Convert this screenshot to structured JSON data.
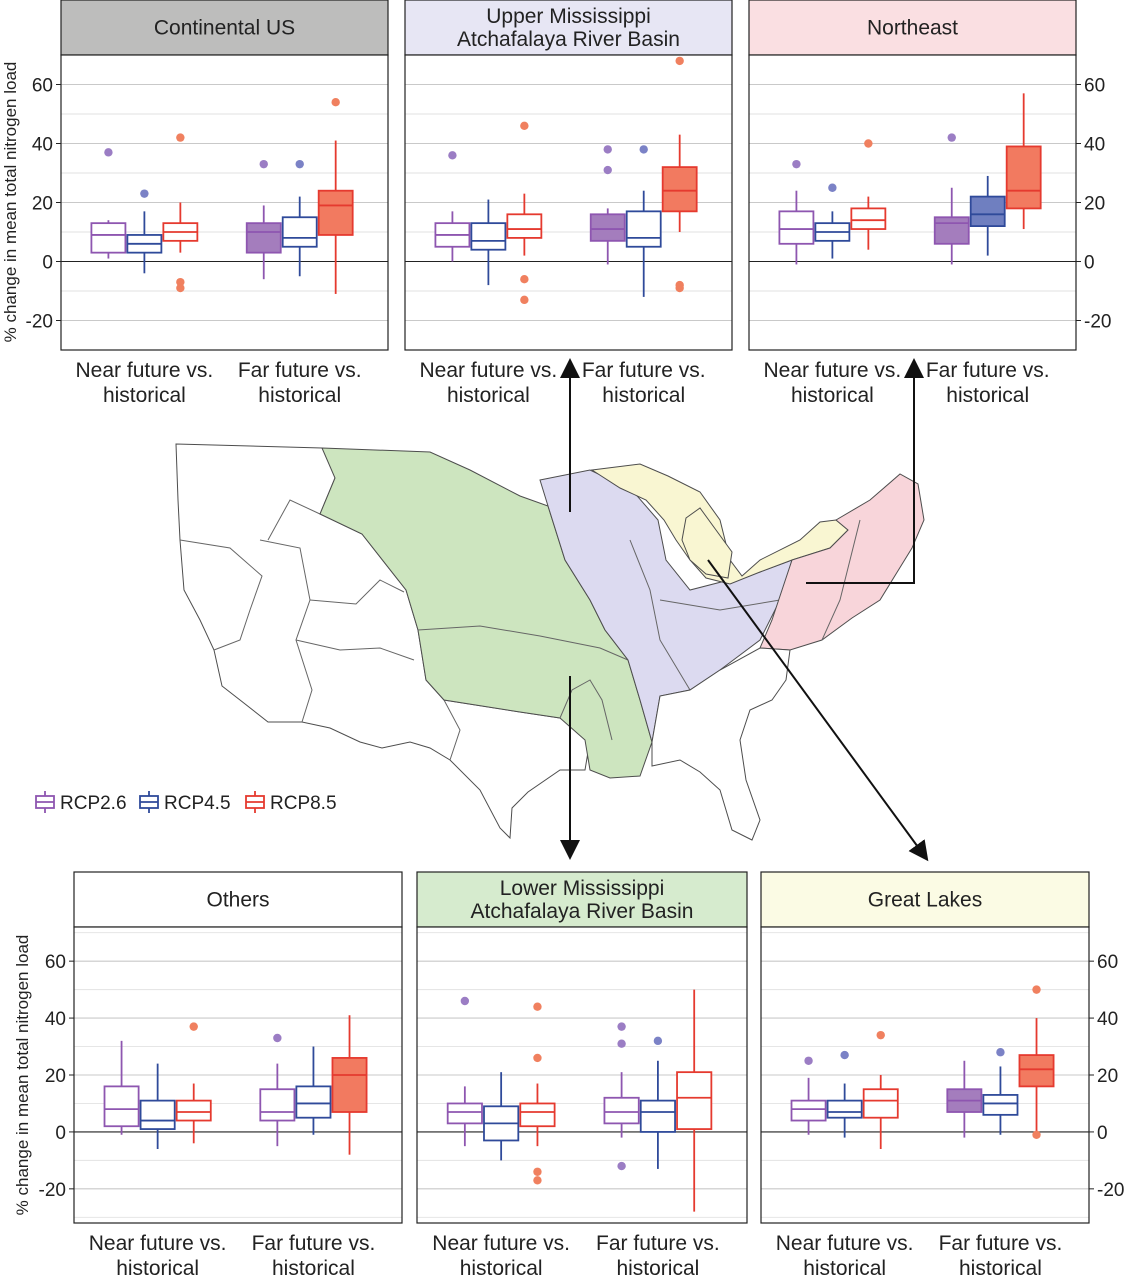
{
  "y_axis_label": "% change in mean total nitrogen load",
  "legend": [
    {
      "label": "RCP2.6",
      "color": "#8e56b0"
    },
    {
      "label": "RCP4.5",
      "color": "#2f4a9a"
    },
    {
      "label": "RCP8.5",
      "color": "#e53a2f"
    }
  ],
  "colors": {
    "strip_continental": "#bdbdbc",
    "strip_upper": "#e7e6f4",
    "strip_northeast": "#fadfe2",
    "strip_others": "#ffffff",
    "strip_lower": "#d6ebce",
    "strip_greatlakes": "#fbfbe4",
    "map_green": "#cde5bf",
    "map_lavender": "#dcdaf0",
    "map_yellow": "#f9f6d2",
    "map_pink": "#f8d5da"
  },
  "chart_data": [
    {
      "type": "boxplot",
      "title": "Continental US",
      "categories": [
        "Near future vs.\nhistorical",
        "Far future vs.\nhistorical"
      ],
      "ylim": [
        -30,
        70
      ],
      "yticks": [
        60,
        40,
        20,
        0,
        -20
      ],
      "series": [
        {
          "name": "RCP2.6",
          "filled": [
            false,
            true
          ],
          "boxes": [
            {
              "whislo": 1,
              "q1": 3,
              "med": 9,
              "q3": 13,
              "whishi": 14,
              "fliers": [
                37
              ]
            },
            {
              "whislo": -6,
              "q1": 3,
              "med": 10,
              "q3": 13,
              "whishi": 19,
              "fliers": [
                33
              ]
            }
          ]
        },
        {
          "name": "RCP4.5",
          "filled": [
            false,
            false
          ],
          "boxes": [
            {
              "whislo": -4,
              "q1": 3,
              "med": 6,
              "q3": 9,
              "whishi": 17,
              "fliers": [
                23
              ]
            },
            {
              "whislo": -5,
              "q1": 5,
              "med": 8,
              "q3": 15,
              "whishi": 22,
              "fliers": [
                33
              ]
            }
          ]
        },
        {
          "name": "RCP8.5",
          "filled": [
            false,
            true
          ],
          "boxes": [
            {
              "whislo": 3,
              "q1": 7,
              "med": 10,
              "q3": 13,
              "whishi": 20,
              "fliers": [
                42,
                -7,
                -9
              ]
            },
            {
              "whislo": -11,
              "q1": 9,
              "med": 19,
              "q3": 24,
              "whishi": 41,
              "fliers": [
                54
              ]
            }
          ]
        }
      ]
    },
    {
      "type": "boxplot",
      "title": "Upper Mississippi\nAtchafalaya River Basin",
      "categories": [
        "Near future vs.\nhistorical",
        "Far future vs.\nhistorical"
      ],
      "ylim": [
        -30,
        70
      ],
      "yticks": [
        60,
        40,
        20,
        0,
        -20
      ],
      "series": [
        {
          "name": "RCP2.6",
          "filled": [
            false,
            true
          ],
          "boxes": [
            {
              "whislo": 0,
              "q1": 5,
              "med": 9,
              "q3": 13,
              "whishi": 17,
              "fliers": [
                36
              ]
            },
            {
              "whislo": -1,
              "q1": 7,
              "med": 11,
              "q3": 16,
              "whishi": 18,
              "fliers": [
                38,
                31
              ]
            }
          ]
        },
        {
          "name": "RCP4.5",
          "filled": [
            false,
            false
          ],
          "boxes": [
            {
              "whislo": -8,
              "q1": 4,
              "med": 7,
              "q3": 13,
              "whishi": 21,
              "fliers": []
            },
            {
              "whislo": -12,
              "q1": 5,
              "med": 8,
              "q3": 17,
              "whishi": 24,
              "fliers": [
                38
              ]
            }
          ]
        },
        {
          "name": "RCP8.5",
          "filled": [
            false,
            true
          ],
          "boxes": [
            {
              "whislo": 2,
              "q1": 8,
              "med": 11,
              "q3": 16,
              "whishi": 23,
              "fliers": [
                46,
                -6,
                -13
              ]
            },
            {
              "whislo": 10,
              "q1": 17,
              "med": 24,
              "q3": 32,
              "whishi": 43,
              "fliers": [
                68,
                -8,
                -9
              ]
            }
          ]
        }
      ]
    },
    {
      "type": "boxplot",
      "title": "Northeast",
      "categories": [
        "Near future vs.\nhistorical",
        "Far future vs.\nhistorical"
      ],
      "ylim": [
        -30,
        70
      ],
      "yticks": [
        60,
        40,
        20,
        0,
        -20
      ],
      "series": [
        {
          "name": "RCP2.6",
          "filled": [
            false,
            true
          ],
          "boxes": [
            {
              "whislo": -1,
              "q1": 6,
              "med": 11,
              "q3": 17,
              "whishi": 24,
              "fliers": [
                33
              ]
            },
            {
              "whislo": -1,
              "q1": 6,
              "med": 13,
              "q3": 15,
              "whishi": 25,
              "fliers": [
                42
              ]
            }
          ]
        },
        {
          "name": "RCP4.5",
          "filled": [
            false,
            true
          ],
          "boxes": [
            {
              "whislo": 1,
              "q1": 7,
              "med": 10,
              "q3": 13,
              "whishi": 17,
              "fliers": [
                25
              ]
            },
            {
              "whislo": 2,
              "q1": 12,
              "med": 16,
              "q3": 22,
              "whishi": 29,
              "fliers": []
            }
          ]
        },
        {
          "name": "RCP8.5",
          "filled": [
            false,
            true
          ],
          "boxes": [
            {
              "whislo": 4,
              "q1": 11,
              "med": 14,
              "q3": 18,
              "whishi": 22,
              "fliers": [
                40
              ]
            },
            {
              "whislo": 11,
              "q1": 18,
              "med": 24,
              "q3": 39,
              "whishi": 57,
              "fliers": []
            }
          ]
        }
      ]
    },
    {
      "type": "boxplot",
      "title": "Others",
      "categories": [
        "Near future vs.\nhistorical",
        "Far future vs.\nhistorical"
      ],
      "ylim": [
        -32,
        72
      ],
      "yticks": [
        60,
        40,
        20,
        0,
        -20
      ],
      "series": [
        {
          "name": "RCP2.6",
          "filled": [
            false,
            false
          ],
          "boxes": [
            {
              "whislo": -1,
              "q1": 2,
              "med": 8,
              "q3": 16,
              "whishi": 32,
              "fliers": []
            },
            {
              "whislo": -5,
              "q1": 4,
              "med": 7,
              "q3": 15,
              "whishi": 24,
              "fliers": [
                33
              ]
            }
          ]
        },
        {
          "name": "RCP4.5",
          "filled": [
            false,
            false
          ],
          "boxes": [
            {
              "whislo": -6,
              "q1": 1,
              "med": 4,
              "q3": 11,
              "whishi": 24,
              "fliers": []
            },
            {
              "whislo": -1,
              "q1": 5,
              "med": 10,
              "q3": 16,
              "whishi": 30,
              "fliers": []
            }
          ]
        },
        {
          "name": "RCP8.5",
          "filled": [
            false,
            true
          ],
          "boxes": [
            {
              "whislo": -4,
              "q1": 4,
              "med": 7,
              "q3": 11,
              "whishi": 17,
              "fliers": [
                37
              ]
            },
            {
              "whislo": -8,
              "q1": 7,
              "med": 20,
              "q3": 26,
              "whishi": 41,
              "fliers": []
            }
          ]
        }
      ]
    },
    {
      "type": "boxplot",
      "title": "Lower Mississippi\nAtchafalaya River Basin",
      "categories": [
        "Near future vs.\nhistorical",
        "Far future vs.\nhistorical"
      ],
      "ylim": [
        -32,
        72
      ],
      "yticks": [
        60,
        40,
        20,
        0,
        -20
      ],
      "series": [
        {
          "name": "RCP2.6",
          "filled": [
            false,
            false
          ],
          "boxes": [
            {
              "whislo": -5,
              "q1": 3,
              "med": 7,
              "q3": 10,
              "whishi": 16,
              "fliers": [
                46
              ]
            },
            {
              "whislo": -2,
              "q1": 3,
              "med": 7,
              "q3": 12,
              "whishi": 21,
              "fliers": [
                37,
                31,
                -12
              ]
            }
          ]
        },
        {
          "name": "RCP4.5",
          "filled": [
            false,
            false
          ],
          "boxes": [
            {
              "whislo": -10,
              "q1": -3,
              "med": 3,
              "q3": 9,
              "whishi": 21,
              "fliers": []
            },
            {
              "whislo": -13,
              "q1": 0,
              "med": 7,
              "q3": 11,
              "whishi": 25,
              "fliers": [
                32
              ]
            }
          ]
        },
        {
          "name": "RCP8.5",
          "filled": [
            false,
            false
          ],
          "boxes": [
            {
              "whislo": -5,
              "q1": 2,
              "med": 7,
              "q3": 10,
              "whishi": 17,
              "fliers": [
                44,
                26,
                -14,
                -17
              ]
            },
            {
              "whislo": -28,
              "q1": 1,
              "med": 12,
              "q3": 21,
              "whishi": 50,
              "fliers": []
            }
          ]
        }
      ]
    },
    {
      "type": "boxplot",
      "title": "Great Lakes",
      "categories": [
        "Near future vs.\nhistorical",
        "Far future vs.\nhistorical"
      ],
      "ylim": [
        -32,
        72
      ],
      "yticks": [
        60,
        40,
        20,
        0,
        -20
      ],
      "series": [
        {
          "name": "RCP2.6",
          "filled": [
            false,
            true
          ],
          "boxes": [
            {
              "whislo": -1,
              "q1": 4,
              "med": 8,
              "q3": 11,
              "whishi": 19,
              "fliers": [
                25
              ]
            },
            {
              "whislo": -2,
              "q1": 7,
              "med": 11,
              "q3": 15,
              "whishi": 25,
              "fliers": []
            }
          ]
        },
        {
          "name": "RCP4.5",
          "filled": [
            false,
            false
          ],
          "boxes": [
            {
              "whislo": -2,
              "q1": 5,
              "med": 7,
              "q3": 11,
              "whishi": 17,
              "fliers": [
                27
              ]
            },
            {
              "whislo": -1,
              "q1": 6,
              "med": 10,
              "q3": 13,
              "whishi": 23,
              "fliers": [
                28
              ]
            }
          ]
        },
        {
          "name": "RCP8.5",
          "filled": [
            false,
            true
          ],
          "boxes": [
            {
              "whislo": -6,
              "q1": 5,
              "med": 11,
              "q3": 15,
              "whishi": 20,
              "fliers": [
                34
              ]
            },
            {
              "whislo": -1,
              "q1": 16,
              "med": 22,
              "q3": 27,
              "whishi": 40,
              "fliers": [
                50,
                -1
              ]
            }
          ]
        }
      ]
    }
  ]
}
